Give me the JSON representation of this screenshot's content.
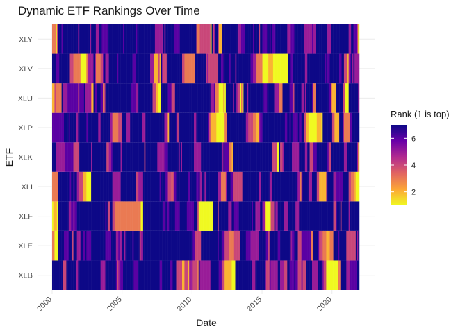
{
  "chart_data": {
    "type": "heatmap",
    "title": "Dynamic ETF Rankings Over Time",
    "xlabel": "Date",
    "ylabel": "ETF",
    "categories": [
      "XLB",
      "XLE",
      "XLF",
      "XLI",
      "XLK",
      "XLP",
      "XLU",
      "XLV",
      "XLY"
    ],
    "x_range": [
      "2000-01",
      "2021-12"
    ],
    "x_ticks": [
      "2000",
      "2005",
      "2010",
      "2015",
      "2020"
    ],
    "x_tick_years": [
      2000,
      2005,
      2010,
      2015,
      2020
    ],
    "value_range": [
      1,
      7
    ],
    "grid": true,
    "legend": {
      "title": "Rank (1 is top)",
      "placement": "right",
      "ticks": [
        2,
        4,
        6
      ],
      "tick_labels": [
        "2",
        "4",
        "6"
      ]
    },
    "colors": {
      "low": "#f0f921",
      "mid_low": "#fca636",
      "mid": "#e16462",
      "mid_high": "#b12a90",
      "high_mid": "#6a00a8",
      "high": "#0d0887"
    }
  }
}
